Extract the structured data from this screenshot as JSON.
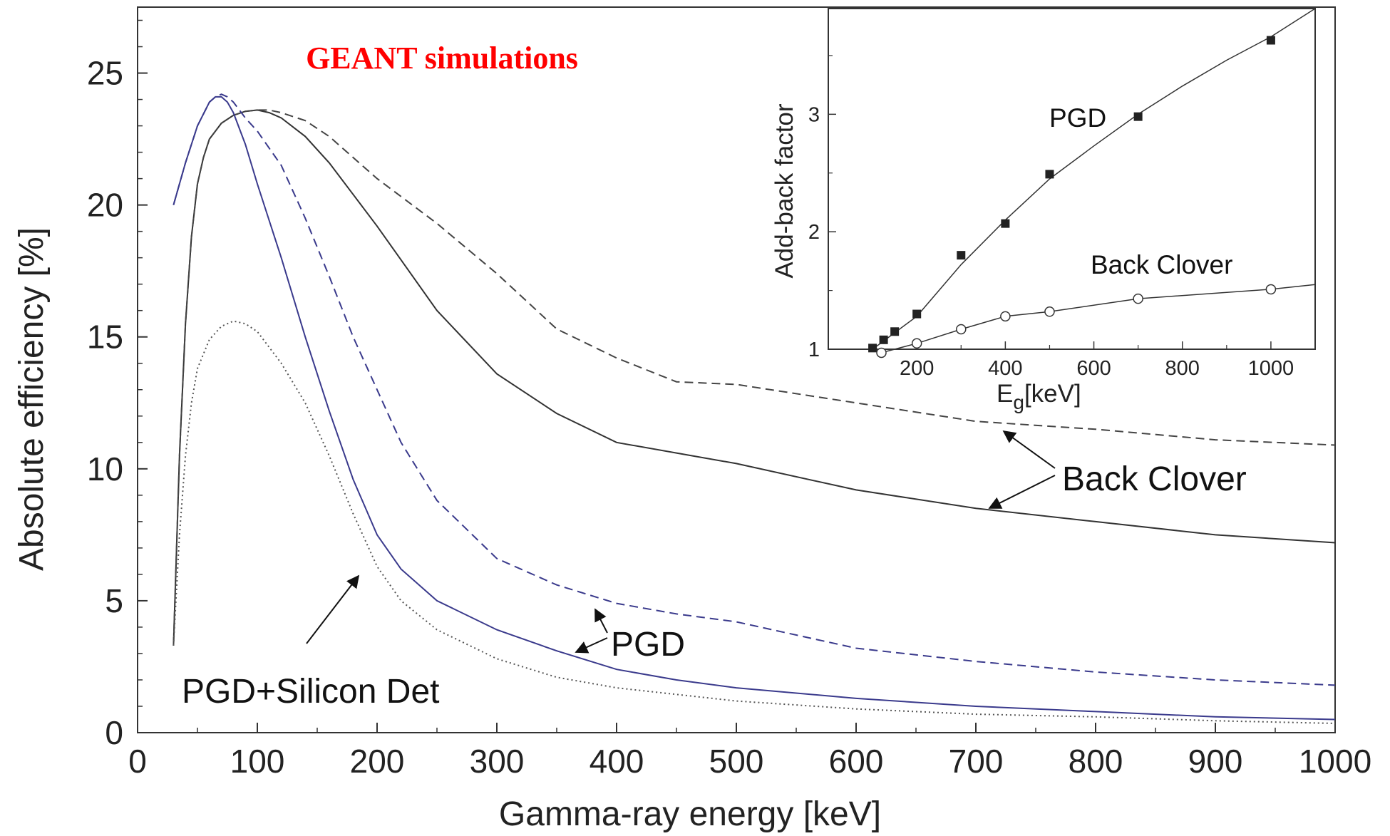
{
  "chart_data": [
    {
      "type": "line",
      "title": "GEANT simulations",
      "title_color": "#ff0000",
      "xlabel": "Gamma-ray energy [keV]",
      "ylabel": "Absolute efficiency [%]",
      "xlim": [
        0,
        1000
      ],
      "ylim": [
        0,
        27.5
      ],
      "x_ticks": [
        0,
        100,
        200,
        300,
        400,
        500,
        600,
        700,
        800,
        900,
        1000
      ],
      "y_ticks": [
        0,
        5,
        10,
        15,
        20,
        25
      ],
      "grid": false,
      "series": [
        {
          "color": "#333333",
          "style": "solid",
          "x": [
            30,
            35,
            40,
            45,
            50,
            55,
            60,
            70,
            80,
            90,
            100,
            110,
            120,
            140,
            160,
            180,
            200,
            250,
            300,
            350,
            400,
            450,
            500,
            600,
            700,
            800,
            900,
            1000
          ],
          "y": [
            3.3,
            10.5,
            15.5,
            18.8,
            20.8,
            21.8,
            22.5,
            23.1,
            23.4,
            23.55,
            23.6,
            23.5,
            23.3,
            22.6,
            21.6,
            20.4,
            19.2,
            16.0,
            13.6,
            12.1,
            11.0,
            10.6,
            10.2,
            9.2,
            8.5,
            8.0,
            7.5,
            7.2
          ]
        },
        {
          "color": "#444444",
          "style": "dashed",
          "x": [
            30,
            35,
            40,
            45,
            50,
            55,
            60,
            70,
            80,
            90,
            100,
            110,
            120,
            140,
            160,
            180,
            200,
            250,
            300,
            350,
            400,
            450,
            500,
            600,
            700,
            800,
            900,
            1000
          ],
          "y": [
            3.3,
            10.5,
            15.5,
            18.8,
            20.8,
            21.8,
            22.5,
            23.1,
            23.4,
            23.55,
            23.6,
            23.6,
            23.5,
            23.2,
            22.6,
            21.8,
            21.0,
            19.3,
            17.4,
            15.3,
            14.2,
            13.3,
            13.2,
            12.5,
            11.8,
            11.5,
            11.1,
            10.9
          ]
        },
        {
          "color": "#3a3a8c",
          "style": "solid",
          "x": [
            30,
            40,
            50,
            60,
            65,
            70,
            75,
            80,
            90,
            100,
            120,
            140,
            160,
            180,
            200,
            220,
            250,
            300,
            350,
            400,
            450,
            500,
            600,
            700,
            800,
            900,
            1000
          ],
          "y": [
            20.0,
            21.6,
            23.0,
            23.9,
            24.1,
            24.1,
            23.9,
            23.5,
            22.3,
            20.8,
            18.0,
            15.0,
            12.2,
            9.6,
            7.5,
            6.2,
            5.0,
            3.9,
            3.1,
            2.4,
            2.0,
            1.7,
            1.3,
            1.0,
            0.8,
            0.6,
            0.5
          ]
        },
        {
          "color": "#3a3a8c",
          "style": "dashed",
          "x": [
            30,
            40,
            50,
            60,
            65,
            70,
            75,
            80,
            90,
            100,
            120,
            140,
            160,
            180,
            200,
            220,
            250,
            300,
            350,
            400,
            450,
            500,
            600,
            700,
            800,
            900,
            1000
          ],
          "y": [
            20.0,
            21.6,
            23.0,
            23.9,
            24.1,
            24.2,
            24.1,
            23.9,
            23.3,
            22.8,
            21.5,
            19.5,
            17.3,
            15.0,
            13.0,
            11.0,
            8.8,
            6.6,
            5.6,
            4.9,
            4.5,
            4.2,
            3.2,
            2.7,
            2.3,
            2.0,
            1.8
          ]
        },
        {
          "color": "#555555",
          "style": "dotted",
          "x": [
            30,
            35,
            40,
            45,
            50,
            60,
            70,
            80,
            90,
            100,
            120,
            140,
            160,
            180,
            200,
            220,
            250,
            300,
            350,
            400,
            500,
            600,
            700,
            800,
            900,
            1000
          ],
          "y": [
            3.3,
            7.5,
            10.5,
            12.5,
            13.8,
            14.9,
            15.4,
            15.6,
            15.5,
            15.2,
            14.0,
            12.5,
            10.5,
            8.3,
            6.3,
            5.0,
            3.9,
            2.8,
            2.1,
            1.7,
            1.2,
            0.9,
            0.7,
            0.6,
            0.45,
            0.35
          ]
        }
      ],
      "annotations": [
        {
          "text": "Back Clover"
        },
        {
          "text": "PGD"
        },
        {
          "text": "PGD+Silicon Det"
        }
      ]
    },
    {
      "type": "line",
      "title": "",
      "xlabel_main": "E",
      "xlabel_sub": "g",
      "xlabel_rest": "[keV]",
      "ylabel": "Add-back factor",
      "xlim": [
        0,
        1100
      ],
      "ylim": [
        1,
        3.9
      ],
      "x_ticks": [
        200,
        400,
        600,
        800,
        1000
      ],
      "y_ticks": [
        1,
        2,
        3
      ],
      "grid": false,
      "series": [
        {
          "name": "PGD",
          "marker": "filled-square",
          "x": [
            100,
            125,
            150,
            200,
            300,
            400,
            500,
            700,
            1000
          ],
          "y": [
            1.01,
            1.08,
            1.15,
            1.3,
            1.8,
            2.07,
            2.49,
            2.98,
            3.63
          ],
          "curve_x": [
            100,
            200,
            300,
            400,
            500,
            600,
            700,
            800,
            900,
            1000,
            1100
          ],
          "curve_y": [
            1.0,
            1.28,
            1.72,
            2.1,
            2.45,
            2.73,
            3.0,
            3.24,
            3.46,
            3.66,
            3.9
          ]
        },
        {
          "name": "Back Clover",
          "marker": "open-circle",
          "x": [
            120,
            200,
            300,
            400,
            500,
            700,
            1000
          ],
          "y": [
            0.97,
            1.05,
            1.17,
            1.28,
            1.32,
            1.43,
            1.51
          ],
          "curve_x": [
            120,
            200,
            300,
            400,
            500,
            700,
            1000,
            1100
          ],
          "curve_y": [
            0.97,
            1.05,
            1.17,
            1.28,
            1.32,
            1.43,
            1.51,
            1.55
          ]
        }
      ]
    }
  ]
}
